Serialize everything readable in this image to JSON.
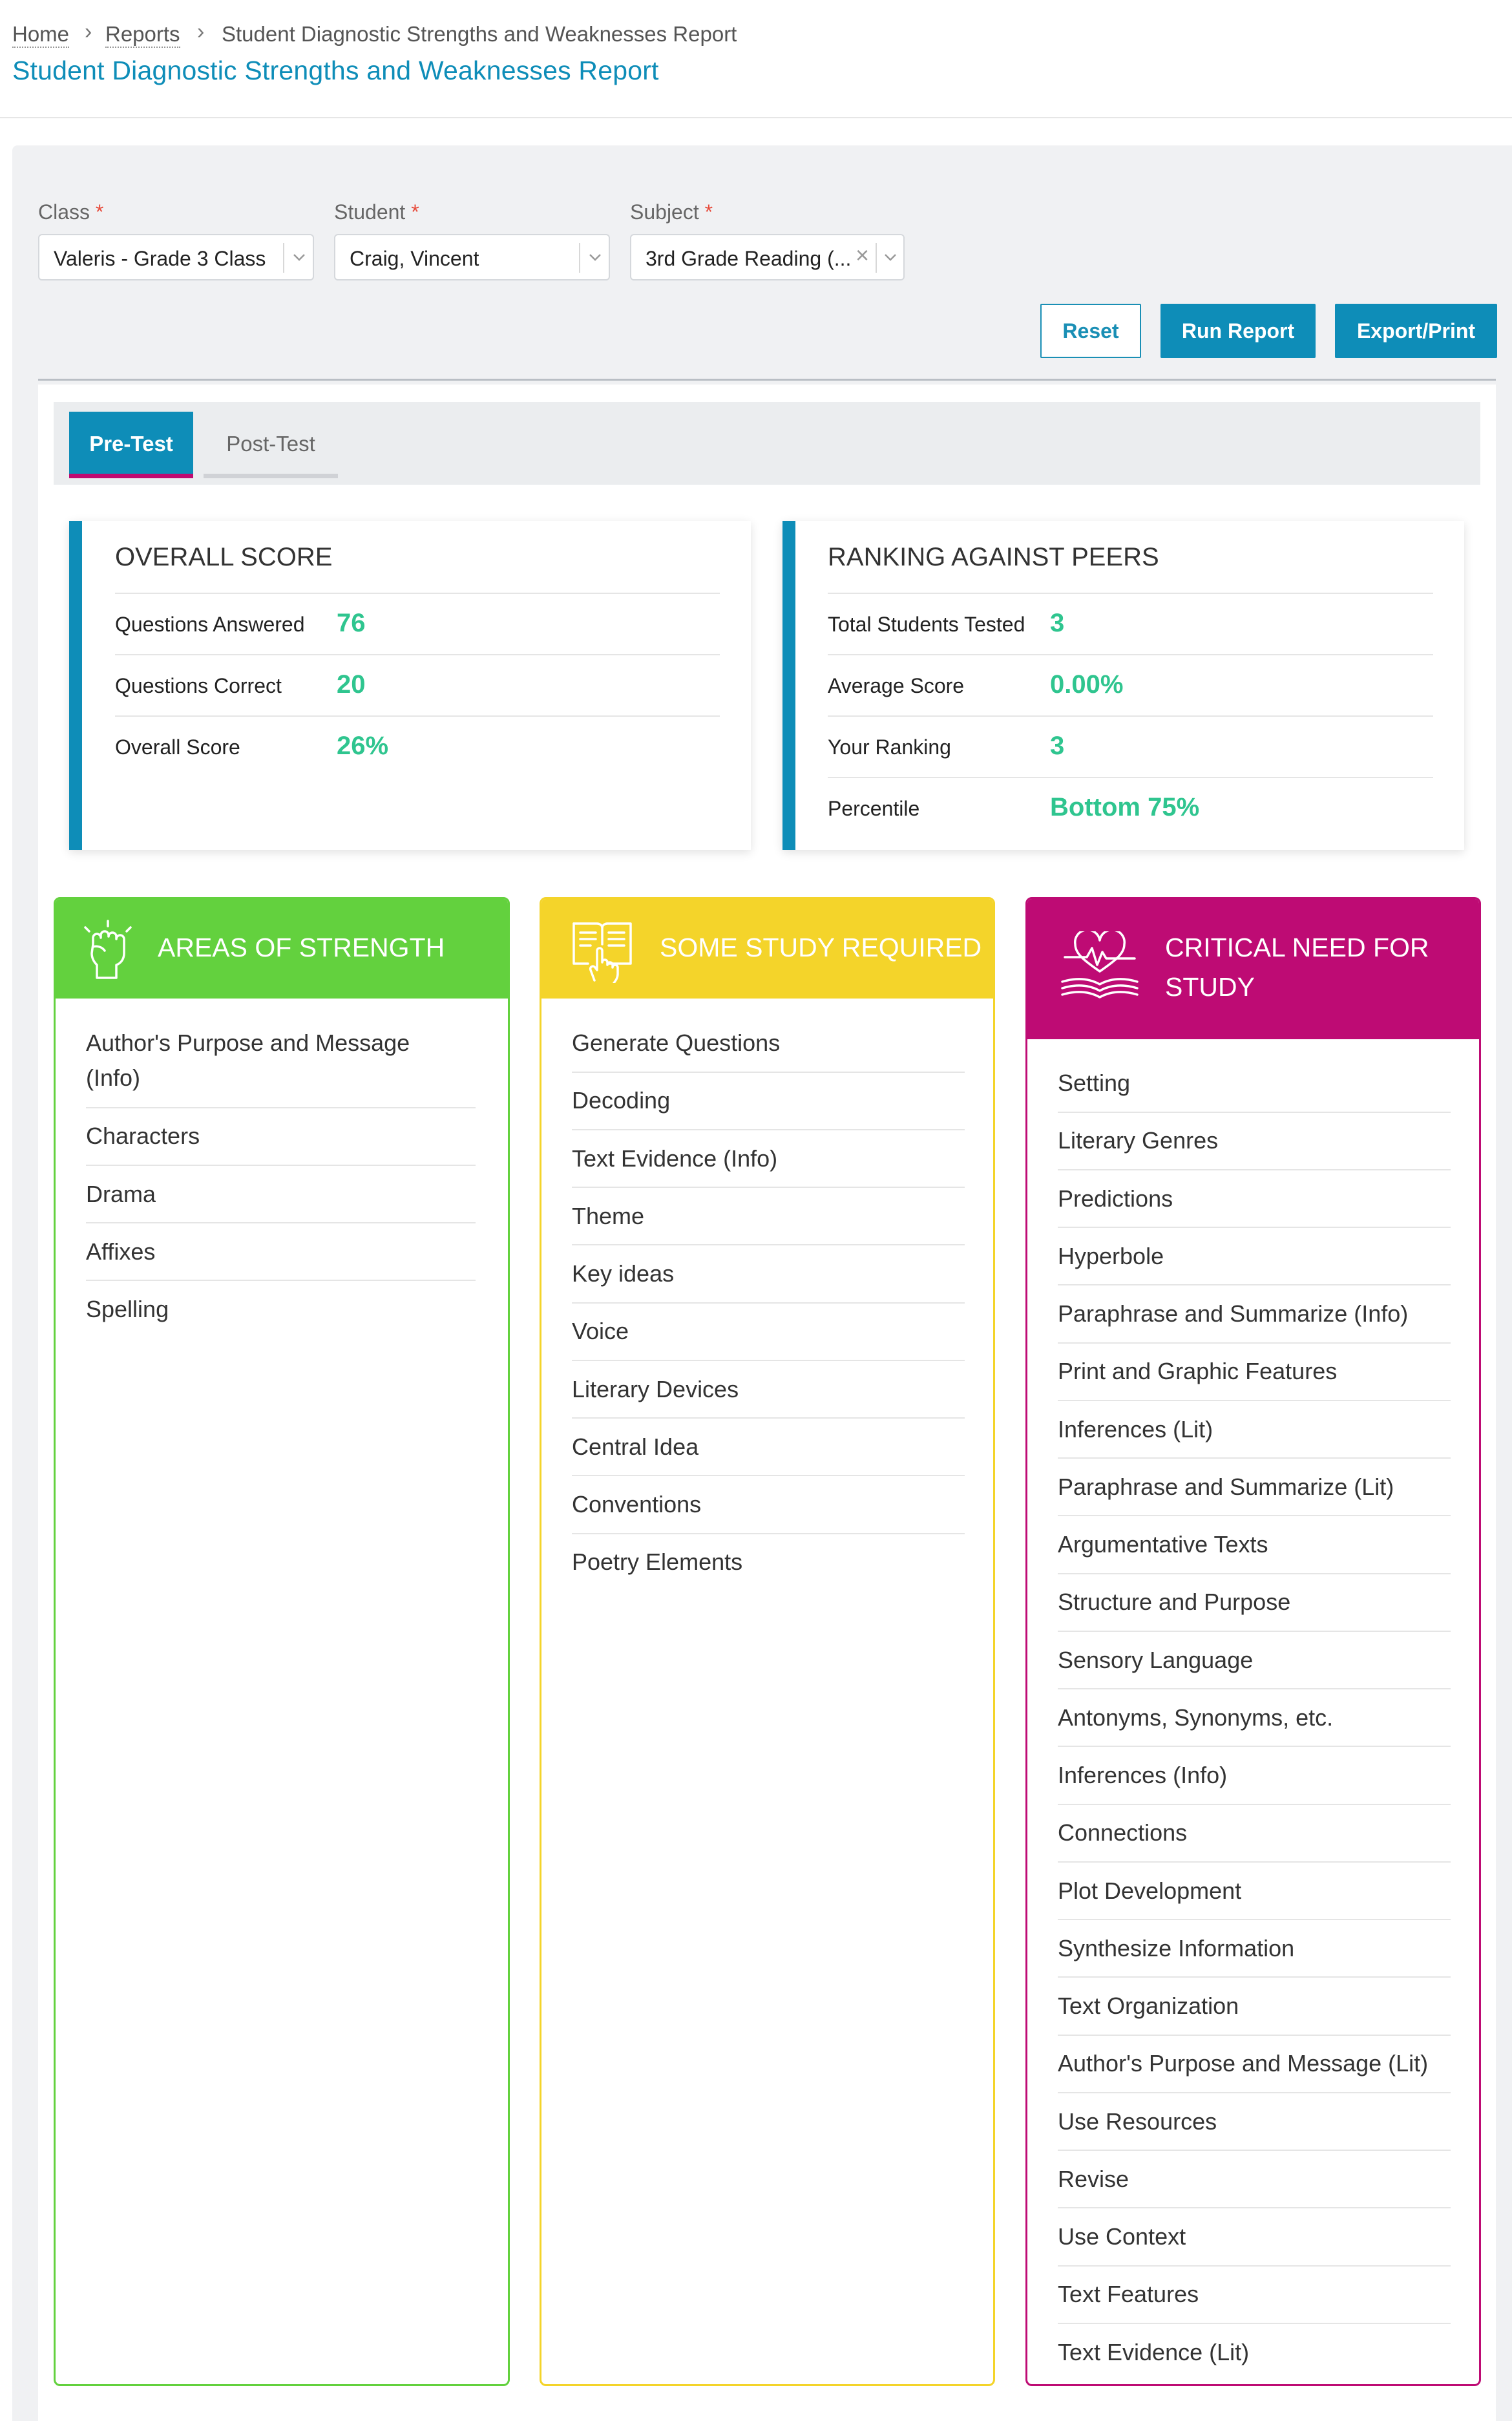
{
  "breadcrumb": {
    "home": "Home",
    "reports": "Reports",
    "current": "Student Diagnostic Strengths and Weaknesses Report"
  },
  "page_title": "Student Diagnostic Strengths and Weaknesses Report",
  "filters": {
    "class": {
      "label": "Class",
      "required_mark": "*",
      "value": "Valeris - Grade 3 Class"
    },
    "student": {
      "label": "Student",
      "required_mark": "*",
      "value": "Craig, Vincent"
    },
    "subject": {
      "label": "Subject",
      "required_mark": "*",
      "value": "3rd Grade Reading (..."
    }
  },
  "buttons": {
    "reset": "Reset",
    "run": "Run Report",
    "export": "Export/Print"
  },
  "tabs": {
    "pre": "Pre-Test",
    "post": "Post-Test"
  },
  "overall": {
    "title": "OVERALL SCORE",
    "rows": [
      {
        "label": "Questions Answered",
        "value": "76"
      },
      {
        "label": "Questions Correct",
        "value": "20"
      },
      {
        "label": "Overall Score",
        "value": "26%"
      }
    ]
  },
  "ranking": {
    "title": "RANKING AGAINST PEERS",
    "rows": [
      {
        "label": "Total Students Tested",
        "value": "3"
      },
      {
        "label": "Average Score",
        "value": "0.00%"
      },
      {
        "label": "Your Ranking",
        "value": "3"
      },
      {
        "label": "Percentile",
        "value": "Bottom 75%"
      }
    ]
  },
  "strength": {
    "title": "AREAS OF STRENGTH",
    "color": "#63d13e",
    "icon": "raised-fist-icon",
    "items": [
      "Author's Purpose and Message",
      "(Info)",
      "Characters",
      "Drama",
      "Affixes",
      "Spelling"
    ]
  },
  "study": {
    "title": "SOME STUDY REQUIRED",
    "color": "#f4d42a",
    "icon": "book-pointer-icon",
    "items": [
      "Generate Questions",
      "Decoding",
      "Text Evidence (Info)",
      "Theme",
      "Key ideas",
      "Voice",
      "Literary Devices",
      "Central Idea",
      "Conventions",
      "Poetry Elements"
    ]
  },
  "critical": {
    "title_line1": "CRITICAL NEED FOR",
    "title_line2": "STUDY",
    "color": "#be0b74",
    "icon": "heart-book-icon",
    "items": [
      "Setting",
      "Literary Genres",
      "Predictions",
      "Hyperbole",
      "Paraphrase and Summarize (Info)",
      "Print and Graphic Features",
      "Inferences (Lit)",
      "Paraphrase and Summarize (Lit)",
      "Argumentative Texts",
      "Structure and Purpose",
      "Sensory Language",
      "Antonyms, Synonyms, etc.",
      "Inferences (Info)",
      "Connections",
      "Plot Development",
      "Synthesize Information",
      "Text Organization",
      "Author's Purpose and Message (Lit)",
      "Use Resources",
      "Revise",
      "Use Context",
      "Text Features",
      "Text Evidence (Lit)"
    ]
  },
  "colors": {
    "accent": "#0e8db8",
    "score_green": "#2fc58f",
    "tab_underline": "#bf0a70"
  }
}
